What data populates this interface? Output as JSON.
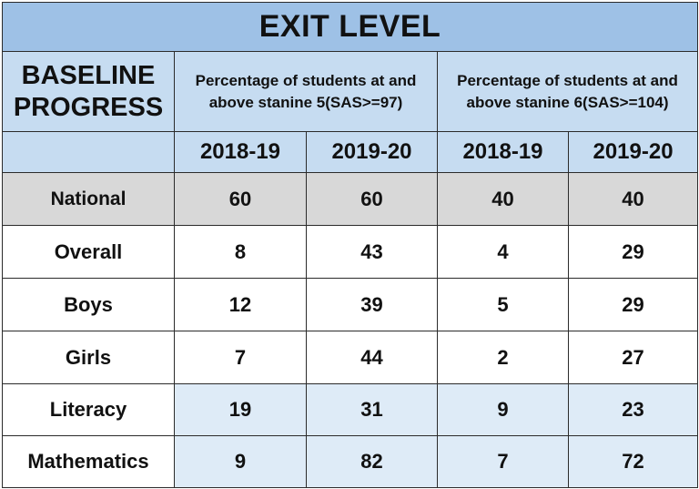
{
  "title": "EXIT LEVEL",
  "row_header": "BASELINE\nPROGRESS",
  "group_headers": [
    "Percentage of students at and above stanine 5(SAS>=97)",
    "Percentage of students at and above stanine 6(SAS>=104)"
  ],
  "years": [
    "2018-19",
    "2019-20",
    "2018-19",
    "2019-20"
  ],
  "rows": [
    {
      "label": "National",
      "values": [
        "60",
        "60",
        "40",
        "40"
      ]
    },
    {
      "label": "Overall",
      "values": [
        "8",
        "43",
        "4",
        "29"
      ]
    },
    {
      "label": "Boys",
      "values": [
        "12",
        "39",
        "5",
        "29"
      ]
    },
    {
      "label": "Girls",
      "values": [
        "7",
        "44",
        "2",
        "27"
      ]
    },
    {
      "label": "Literacy",
      "values": [
        "19",
        "31",
        "9",
        "23"
      ]
    },
    {
      "label": "Mathematics",
      "values": [
        "9",
        "82",
        "7",
        "72"
      ]
    }
  ],
  "colors": {
    "title_bg": "#9ec1e6",
    "header_bg": "#c6dcf1",
    "national_bg": "#d8d8d8",
    "subject_bg": "#deebf7"
  }
}
